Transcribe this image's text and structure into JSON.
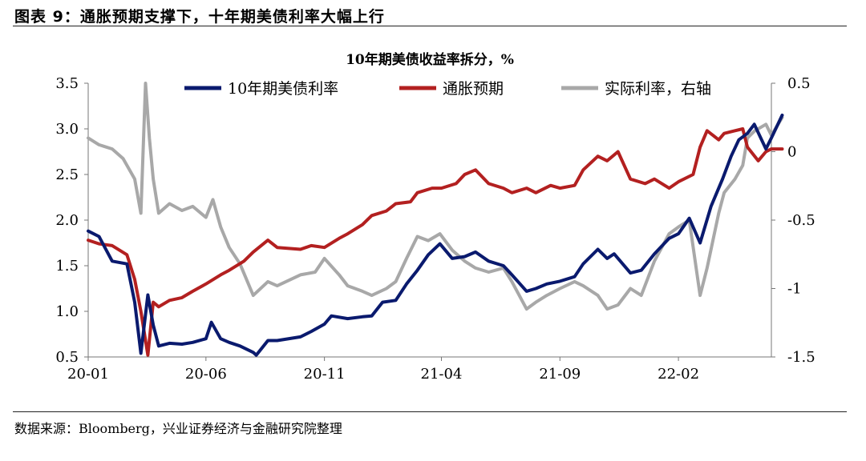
{
  "figure": {
    "title": "图表 9：通胀预期支撑下，十年期美债利率大幅上行",
    "source": "数据来源：Bloomberg，兴业证券经济与金融研究院整理"
  },
  "chart_data": {
    "type": "line",
    "title": "10年期美债收益率拆分，%",
    "x_ticks": [
      "20-01",
      "20-06",
      "20-11",
      "21-04",
      "21-09",
      "22-02"
    ],
    "x_range": [
      "2020-01",
      "2022-06"
    ],
    "y_left": {
      "ylim": [
        0.5,
        3.5
      ],
      "ticks": [
        "0.5",
        "1.0",
        "1.5",
        "2.0",
        "2.5",
        "3.0",
        "3.5"
      ]
    },
    "y_right": {
      "ylim": [
        -1.5,
        0.5
      ],
      "ticks": [
        "-1.5",
        "-1",
        "-0.5",
        "0",
        "0.5"
      ]
    },
    "legend_position": "top",
    "grid": false,
    "series": [
      {
        "name": "10年期美债利率",
        "axis": "left",
        "color": "#0a1a6e",
        "points": [
          [
            "2020-01",
            1.88
          ],
          [
            "2020-01-15",
            1.82
          ],
          [
            "2020-02",
            1.55
          ],
          [
            "2020-02-20",
            1.52
          ],
          [
            "2020-03-01",
            1.1
          ],
          [
            "2020-03-09",
            0.54
          ],
          [
            "2020-03-18",
            1.18
          ],
          [
            "2020-03-25",
            0.85
          ],
          [
            "2020-04",
            0.62
          ],
          [
            "2020-04-15",
            0.65
          ],
          [
            "2020-05",
            0.64
          ],
          [
            "2020-05-15",
            0.66
          ],
          [
            "2020-06",
            0.7
          ],
          [
            "2020-06-08",
            0.88
          ],
          [
            "2020-06-20",
            0.7
          ],
          [
            "2020-07",
            0.66
          ],
          [
            "2020-07-15",
            0.62
          ],
          [
            "2020-08",
            0.55
          ],
          [
            "2020-08-05",
            0.52
          ],
          [
            "2020-08-20",
            0.68
          ],
          [
            "2020-09",
            0.68
          ],
          [
            "2020-10",
            0.72
          ],
          [
            "2020-10-15",
            0.78
          ],
          [
            "2020-11",
            0.86
          ],
          [
            "2020-11-10",
            0.95
          ],
          [
            "2020-12",
            0.92
          ],
          [
            "2020-12-20",
            0.94
          ],
          [
            "2021-01",
            0.95
          ],
          [
            "2021-01-15",
            1.1
          ],
          [
            "2021-02",
            1.12
          ],
          [
            "2021-02-15",
            1.3
          ],
          [
            "2021-03",
            1.45
          ],
          [
            "2021-03-15",
            1.62
          ],
          [
            "2021-03-30",
            1.74
          ],
          [
            "2021-04-15",
            1.58
          ],
          [
            "2021-05",
            1.6
          ],
          [
            "2021-05-15",
            1.65
          ],
          [
            "2021-06",
            1.55
          ],
          [
            "2021-06-20",
            1.5
          ],
          [
            "2021-07",
            1.4
          ],
          [
            "2021-07-20",
            1.22
          ],
          [
            "2021-08",
            1.25
          ],
          [
            "2021-08-15",
            1.3
          ],
          [
            "2021-09",
            1.33
          ],
          [
            "2021-09-20",
            1.38
          ],
          [
            "2021-10",
            1.52
          ],
          [
            "2021-10-20",
            1.68
          ],
          [
            "2021-11",
            1.58
          ],
          [
            "2021-11-10",
            1.63
          ],
          [
            "2021-12",
            1.42
          ],
          [
            "2021-12-15",
            1.45
          ],
          [
            "2022-01",
            1.63
          ],
          [
            "2022-01-20",
            1.8
          ],
          [
            "2022-02",
            1.85
          ],
          [
            "2022-02-15",
            2.02
          ],
          [
            "2022-03",
            1.75
          ],
          [
            "2022-03-15",
            2.15
          ],
          [
            "2022-03-30",
            2.45
          ],
          [
            "2022-04-10",
            2.7
          ],
          [
            "2022-04-20",
            2.88
          ],
          [
            "2022-05",
            2.95
          ],
          [
            "2022-05-10",
            3.05
          ],
          [
            "2022-05-25",
            2.78
          ],
          [
            "2022-06",
            2.9
          ],
          [
            "2022-06-15",
            3.15
          ]
        ]
      },
      {
        "name": "通胀预期",
        "axis": "left",
        "color": "#b32020",
        "points": [
          [
            "2020-01",
            1.78
          ],
          [
            "2020-01-15",
            1.74
          ],
          [
            "2020-02",
            1.72
          ],
          [
            "2020-02-20",
            1.62
          ],
          [
            "2020-03-01",
            1.35
          ],
          [
            "2020-03-09",
            1.0
          ],
          [
            "2020-03-18",
            0.52
          ],
          [
            "2020-03-25",
            1.1
          ],
          [
            "2020-04",
            1.05
          ],
          [
            "2020-04-15",
            1.12
          ],
          [
            "2020-05",
            1.15
          ],
          [
            "2020-05-15",
            1.22
          ],
          [
            "2020-06",
            1.3
          ],
          [
            "2020-06-20",
            1.4
          ],
          [
            "2020-07",
            1.45
          ],
          [
            "2020-07-20",
            1.55
          ],
          [
            "2020-08",
            1.65
          ],
          [
            "2020-08-20",
            1.78
          ],
          [
            "2020-09",
            1.7
          ],
          [
            "2020-10",
            1.68
          ],
          [
            "2020-10-15",
            1.72
          ],
          [
            "2020-11",
            1.7
          ],
          [
            "2020-11-20",
            1.8
          ],
          [
            "2020-12",
            1.85
          ],
          [
            "2020-12-20",
            1.95
          ],
          [
            "2021-01",
            2.05
          ],
          [
            "2021-01-20",
            2.1
          ],
          [
            "2021-02",
            2.18
          ],
          [
            "2021-02-20",
            2.2
          ],
          [
            "2021-03",
            2.3
          ],
          [
            "2021-03-20",
            2.35
          ],
          [
            "2021-04",
            2.35
          ],
          [
            "2021-04-20",
            2.4
          ],
          [
            "2021-05",
            2.5
          ],
          [
            "2021-05-15",
            2.55
          ],
          [
            "2021-06",
            2.4
          ],
          [
            "2021-06-20",
            2.35
          ],
          [
            "2021-07",
            2.3
          ],
          [
            "2021-07-20",
            2.35
          ],
          [
            "2021-08",
            2.3
          ],
          [
            "2021-08-20",
            2.38
          ],
          [
            "2021-09",
            2.35
          ],
          [
            "2021-09-20",
            2.38
          ],
          [
            "2021-10",
            2.55
          ],
          [
            "2021-10-20",
            2.7
          ],
          [
            "2021-11",
            2.65
          ],
          [
            "2021-11-15",
            2.75
          ],
          [
            "2021-12",
            2.45
          ],
          [
            "2021-12-20",
            2.4
          ],
          [
            "2022-01",
            2.45
          ],
          [
            "2022-01-20",
            2.35
          ],
          [
            "2022-02",
            2.42
          ],
          [
            "2022-02-20",
            2.5
          ],
          [
            "2022-03",
            2.8
          ],
          [
            "2022-03-10",
            2.98
          ],
          [
            "2022-03-25",
            2.88
          ],
          [
            "2022-04",
            2.95
          ],
          [
            "2022-04-15",
            2.98
          ],
          [
            "2022-04-25",
            3.0
          ],
          [
            "2022-05",
            2.8
          ],
          [
            "2022-05-15",
            2.65
          ],
          [
            "2022-05-25",
            2.75
          ],
          [
            "2022-06",
            2.78
          ],
          [
            "2022-06-15",
            2.78
          ]
        ]
      },
      {
        "name": "实际利率，右轴",
        "axis": "right",
        "color": "#a8a8a8",
        "points": [
          [
            "2020-01",
            0.1
          ],
          [
            "2020-01-15",
            0.05
          ],
          [
            "2020-02",
            0.02
          ],
          [
            "2020-02-15",
            -0.05
          ],
          [
            "2020-03-01",
            -0.2
          ],
          [
            "2020-03-09",
            -0.45
          ],
          [
            "2020-03-15",
            0.5
          ],
          [
            "2020-03-20",
            0.1
          ],
          [
            "2020-03-25",
            -0.2
          ],
          [
            "2020-04",
            -0.45
          ],
          [
            "2020-04-15",
            -0.38
          ],
          [
            "2020-05",
            -0.43
          ],
          [
            "2020-05-15",
            -0.4
          ],
          [
            "2020-06",
            -0.48
          ],
          [
            "2020-06-10",
            -0.35
          ],
          [
            "2020-06-20",
            -0.55
          ],
          [
            "2020-07",
            -0.7
          ],
          [
            "2020-07-15",
            -0.82
          ],
          [
            "2020-08",
            -1.05
          ],
          [
            "2020-08-20",
            -0.95
          ],
          [
            "2020-09",
            -0.98
          ],
          [
            "2020-10",
            -0.9
          ],
          [
            "2020-10-20",
            -0.88
          ],
          [
            "2020-11",
            -0.78
          ],
          [
            "2020-11-20",
            -0.9
          ],
          [
            "2020-12",
            -0.98
          ],
          [
            "2020-12-20",
            -1.02
          ],
          [
            "2021-01",
            -1.05
          ],
          [
            "2021-01-20",
            -1.0
          ],
          [
            "2021-02",
            -0.95
          ],
          [
            "2021-02-15",
            -0.78
          ],
          [
            "2021-03",
            -0.62
          ],
          [
            "2021-03-15",
            -0.65
          ],
          [
            "2021-03-30",
            -0.6
          ],
          [
            "2021-04-15",
            -0.72
          ],
          [
            "2021-05",
            -0.8
          ],
          [
            "2021-05-15",
            -0.85
          ],
          [
            "2021-06",
            -0.88
          ],
          [
            "2021-06-20",
            -0.85
          ],
          [
            "2021-07",
            -0.95
          ],
          [
            "2021-07-20",
            -1.15
          ],
          [
            "2021-08",
            -1.1
          ],
          [
            "2021-08-15",
            -1.05
          ],
          [
            "2021-09",
            -1.0
          ],
          [
            "2021-09-20",
            -0.95
          ],
          [
            "2021-10",
            -0.98
          ],
          [
            "2021-10-20",
            -1.05
          ],
          [
            "2021-11",
            -1.15
          ],
          [
            "2021-11-15",
            -1.12
          ],
          [
            "2021-12",
            -1.0
          ],
          [
            "2021-12-15",
            -1.05
          ],
          [
            "2022-01",
            -0.8
          ],
          [
            "2022-01-20",
            -0.6
          ],
          [
            "2022-02",
            -0.55
          ],
          [
            "2022-02-15",
            -0.5
          ],
          [
            "2022-03",
            -1.05
          ],
          [
            "2022-03-10",
            -0.85
          ],
          [
            "2022-03-25",
            -0.45
          ],
          [
            "2022-04",
            -0.3
          ],
          [
            "2022-04-15",
            -0.2
          ],
          [
            "2022-04-25",
            -0.1
          ],
          [
            "2022-05",
            0.1
          ],
          [
            "2022-05-10",
            0.15
          ],
          [
            "2022-05-25",
            0.2
          ],
          [
            "2022-06",
            0.12
          ],
          [
            "2022-06-15",
            0.25
          ]
        ]
      }
    ]
  }
}
